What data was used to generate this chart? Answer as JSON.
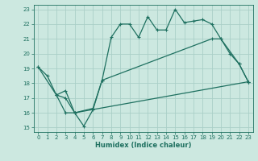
{
  "xlabel": "Humidex (Indice chaleur)",
  "xlim": [
    -0.5,
    23.5
  ],
  "ylim": [
    14.7,
    23.3
  ],
  "yticks": [
    15,
    16,
    17,
    18,
    19,
    20,
    21,
    22,
    23
  ],
  "xticks": [
    0,
    1,
    2,
    3,
    4,
    5,
    6,
    7,
    8,
    9,
    10,
    11,
    12,
    13,
    14,
    15,
    16,
    17,
    18,
    19,
    20,
    21,
    22,
    23
  ],
  "bg_color": "#cce8e0",
  "grid_color": "#aacfc8",
  "line_color": "#1e7060",
  "line1_x": [
    0,
    1,
    2,
    3,
    4,
    5,
    6,
    7,
    8,
    9,
    10,
    11,
    12,
    13,
    14,
    15,
    16,
    17,
    18,
    19,
    20,
    21,
    22,
    23
  ],
  "line1_y": [
    19.1,
    18.5,
    17.2,
    17.5,
    16.0,
    15.1,
    16.2,
    18.2,
    21.1,
    22.0,
    22.0,
    21.1,
    22.5,
    21.6,
    21.6,
    23.0,
    22.1,
    22.2,
    22.3,
    22.0,
    21.0,
    20.0,
    19.3,
    18.1
  ],
  "line2_x": [
    0,
    2,
    3,
    4,
    6,
    7,
    19,
    20,
    22,
    23
  ],
  "line2_y": [
    19.1,
    17.2,
    16.0,
    16.0,
    16.3,
    18.2,
    21.0,
    21.0,
    19.3,
    18.1
  ],
  "line3_x": [
    2,
    3,
    4,
    23
  ],
  "line3_y": [
    17.2,
    17.0,
    16.0,
    18.1
  ]
}
